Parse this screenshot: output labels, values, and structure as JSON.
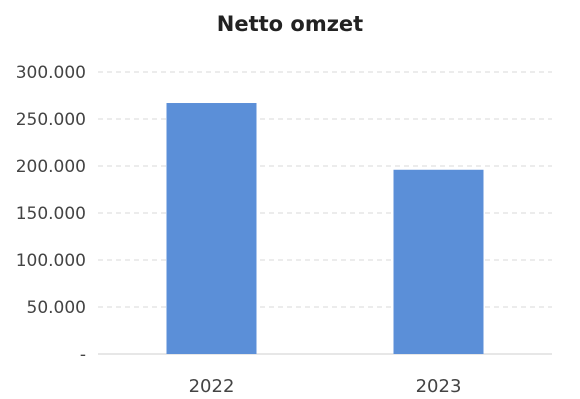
{
  "chart_data": {
    "type": "bar",
    "title": "Netto omzet",
    "categories": [
      "2022",
      "2023"
    ],
    "values": [
      267000,
      196000
    ],
    "ylim": [
      0,
      300000
    ],
    "yticks": [
      0,
      50000,
      100000,
      150000,
      200000,
      250000,
      300000
    ],
    "ytick_labels": [
      "-",
      "50.000",
      "100.000",
      "150.000",
      "200.000",
      "250.000",
      "300.000"
    ],
    "grid": true,
    "legend": "none",
    "bar_color": "#5b8fd8"
  }
}
